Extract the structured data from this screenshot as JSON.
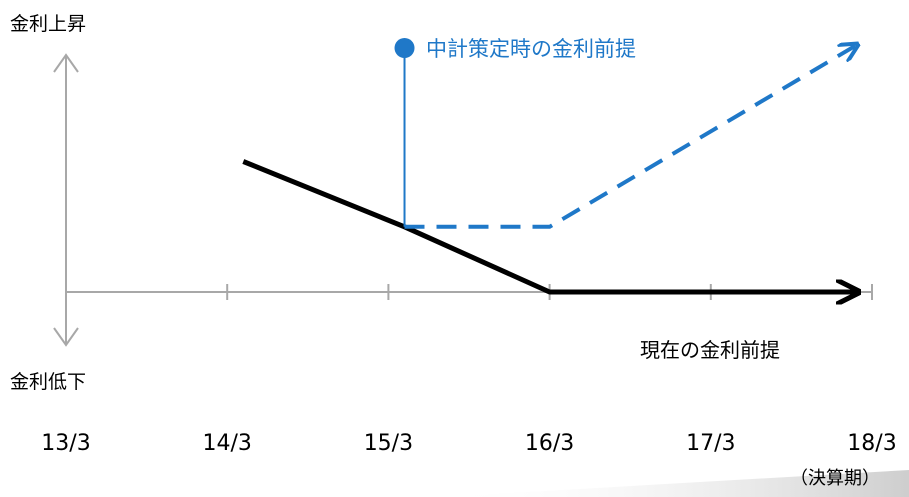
{
  "chart_data": {
    "type": "line",
    "x_categories": [
      "13/3",
      "14/3",
      "15/3",
      "16/3",
      "17/3",
      "18/3"
    ],
    "x_note": "（決算期）",
    "y_top_label": "金利上昇",
    "y_bottom_label": "金利低下",
    "series": [
      {
        "name": "現在の金利前提",
        "style": "solid",
        "color": "#000000",
        "points": [
          [
            1.1,
            1.8
          ],
          [
            2.1,
            0.9
          ],
          [
            3.0,
            0.0
          ],
          [
            4.9,
            0.0
          ]
        ]
      },
      {
        "name": "中計策定時の金利前提",
        "style": "dashed",
        "color": "#1f78c8",
        "points": [
          [
            2.1,
            0.9
          ],
          [
            3.0,
            0.9
          ],
          [
            4.9,
            3.4
          ]
        ]
      }
    ],
    "legend_marker_x": 2.1,
    "legend_marker_y": 3.4
  }
}
